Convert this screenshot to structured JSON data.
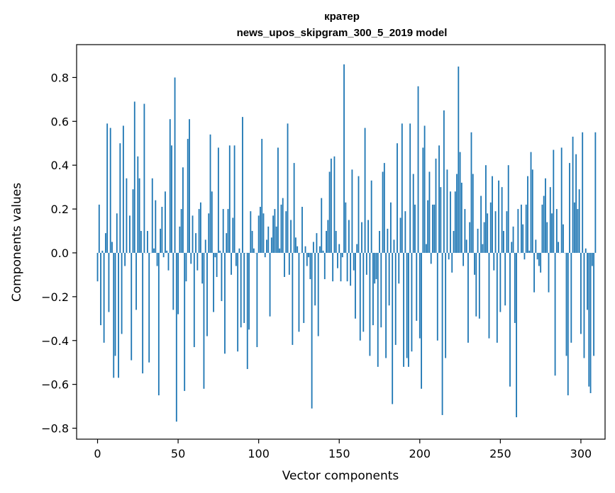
{
  "chart_data": {
    "type": "bar",
    "title": "кратер",
    "subtitle": "news_upos_skipgram_300_5_2019 model",
    "xlabel": "Vector components",
    "ylabel": "Components values",
    "xlim": [
      -13,
      315
    ],
    "ylim": [
      -0.85,
      0.95
    ],
    "xticks": [
      0,
      50,
      100,
      150,
      200,
      250,
      300
    ],
    "xtick_labels": [
      "0",
      "50",
      "100",
      "150",
      "200",
      "250",
      "300"
    ],
    "yticks": [
      -0.8,
      -0.6,
      -0.4,
      -0.2,
      0.0,
      0.2,
      0.4,
      0.6,
      0.8
    ],
    "ytick_labels": [
      "−0.8",
      "−0.6",
      "−0.4",
      "−0.2",
      "0.0",
      "0.2",
      "0.4",
      "0.6",
      "0.8"
    ],
    "grid": false,
    "color": "#1f77b4",
    "x_start": 0,
    "values": [
      -0.13,
      0.22,
      -0.33,
      0.01,
      -0.41,
      0.09,
      0.59,
      -0.27,
      0.57,
      0.05,
      -0.57,
      -0.47,
      0.18,
      -0.57,
      0.5,
      -0.37,
      0.58,
      -0.06,
      0.34,
      0.0,
      0.17,
      -0.49,
      0.29,
      0.69,
      -0.26,
      0.44,
      0.34,
      0.1,
      -0.55,
      0.68,
      0.0,
      0.1,
      -0.5,
      0.0,
      0.34,
      0.02,
      0.24,
      -0.06,
      -0.65,
      0.11,
      0.21,
      -0.02,
      0.28,
      0.01,
      -0.08,
      0.61,
      0.49,
      -0.26,
      0.8,
      -0.77,
      -0.28,
      0.12,
      0.2,
      0.39,
      -0.63,
      -0.13,
      0.52,
      0.61,
      -0.05,
      0.17,
      -0.43,
      0.09,
      -0.08,
      0.2,
      0.23,
      -0.14,
      -0.62,
      0.06,
      -0.38,
      0.18,
      0.54,
      0.28,
      -0.27,
      -0.02,
      -0.11,
      0.48,
      0.01,
      -0.22,
      0.2,
      -0.46,
      0.09,
      0.2,
      0.49,
      -0.1,
      0.16,
      0.49,
      -0.06,
      -0.45,
      0.02,
      -0.34,
      0.62,
      -0.32,
      0.0,
      -0.53,
      -0.35,
      0.19,
      0.1,
      0.02,
      0.0,
      -0.43,
      0.17,
      0.21,
      0.52,
      0.18,
      -0.02,
      0.06,
      0.12,
      -0.29,
      0.07,
      0.17,
      0.2,
      0.12,
      0.48,
      0.02,
      0.22,
      0.25,
      -0.11,
      0.19,
      0.59,
      -0.1,
      0.15,
      -0.42,
      0.41,
      0.07,
      0.03,
      -0.36,
      0.0,
      0.21,
      -0.32,
      0.03,
      -0.06,
      -0.02,
      -0.12,
      -0.71,
      0.05,
      -0.24,
      0.09,
      -0.38,
      0.03,
      0.25,
      0.01,
      -0.12,
      0.1,
      0.15,
      0.37,
      0.43,
      -0.13,
      0.44,
      0.1,
      -0.07,
      0.04,
      -0.13,
      -0.02,
      0.86,
      0.23,
      -0.13,
      0.15,
      -0.15,
      0.38,
      -0.08,
      -0.3,
      0.04,
      0.35,
      -0.4,
      0.14,
      -0.36,
      0.57,
      -0.1,
      0.15,
      -0.47,
      0.33,
      -0.33,
      -0.14,
      -0.12,
      -0.52,
      0.1,
      -0.34,
      0.37,
      0.41,
      -0.48,
      0.11,
      -0.24,
      0.23,
      -0.69,
      0.06,
      -0.42,
      0.5,
      -0.14,
      0.16,
      0.59,
      -0.52,
      0.19,
      -0.48,
      -0.52,
      0.59,
      -0.45,
      0.36,
      0.22,
      -0.31,
      0.76,
      -0.39,
      -0.62,
      0.48,
      0.58,
      0.04,
      0.24,
      0.37,
      -0.05,
      0.22,
      0.22,
      0.43,
      -0.4,
      0.49,
      0.3,
      -0.74,
      0.65,
      -0.48,
      0.38,
      -0.03,
      0.28,
      -0.09,
      0.1,
      0.28,
      0.36,
      0.85,
      0.46,
      0.32,
      -0.06,
      0.2,
      0.06,
      -0.41,
      0.14,
      0.55,
      0.36,
      -0.1,
      -0.29,
      0.11,
      -0.3,
      0.26,
      0.04,
      0.14,
      0.4,
      0.18,
      -0.39,
      0.23,
      0.35,
      -0.08,
      0.19,
      -0.41,
      0.33,
      -0.27,
      0.3,
      0.1,
      -0.24,
      0.19,
      0.4,
      -0.61,
      0.05,
      0.12,
      -0.32,
      -0.75,
      0.2,
      0.0,
      0.22,
      0.13,
      -0.03,
      0.22,
      0.35,
      0.01,
      0.46,
      0.38,
      -0.18,
      0.06,
      -0.03,
      -0.06,
      -0.09,
      0.22,
      0.26,
      0.34,
      0.14,
      -0.18,
      0.3,
      0.18,
      0.47,
      -0.56,
      0.2,
      0.05,
      0.0,
      0.48,
      0.13,
      0.0,
      -0.47,
      -0.65,
      0.41,
      -0.41,
      0.53,
      0.23,
      0.45,
      0.2,
      0.29,
      -0.37,
      0.55,
      -0.48,
      0.02,
      -0.26,
      -0.61,
      -0.64,
      -0.06,
      -0.47,
      0.55
    ]
  }
}
